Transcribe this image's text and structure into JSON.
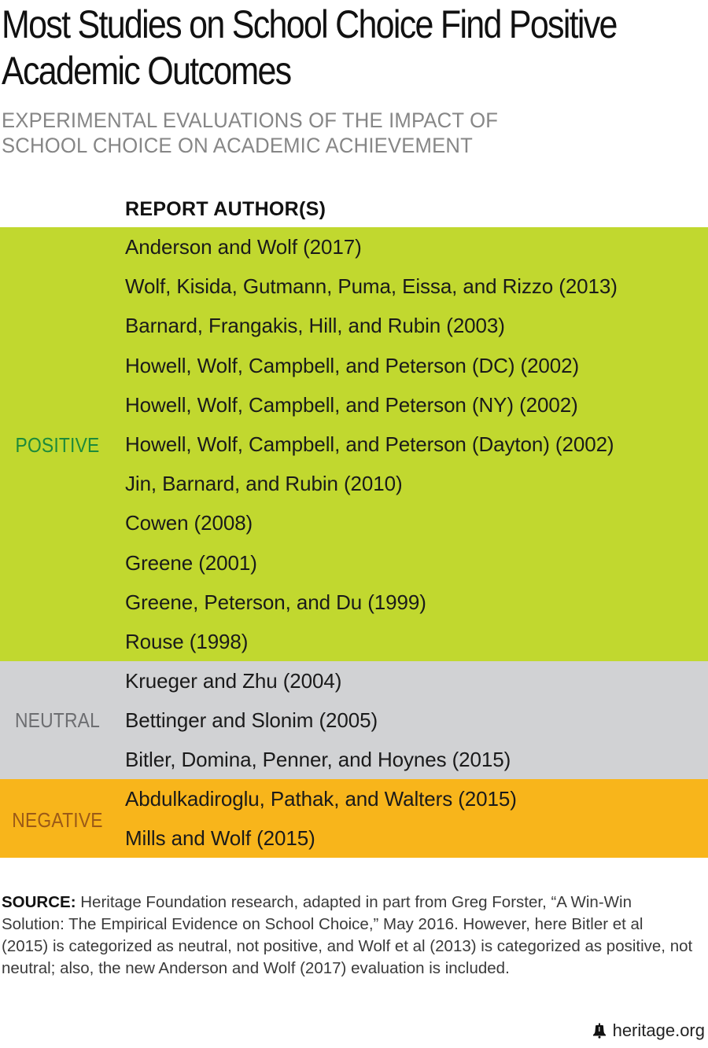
{
  "title_line1": "Most Studies on School Choice Find Positive",
  "title_line2": "Academic Outcomes",
  "subtitle_line1": "EXPERIMENTAL EVALUATIONS OF THE IMPACT OF",
  "subtitle_line2": "SCHOOL CHOICE ON ACADEMIC ACHIEVEMENT",
  "column_header": "REPORT AUTHOR(S)",
  "groups": {
    "positive": {
      "label": "POSITIVE",
      "color": "#c1d82f",
      "reports": [
        "Anderson and Wolf (2017)",
        "Wolf, Kisida, Gutmann, Puma, Eissa, and Rizzo (2013)",
        "Barnard, Frangakis, Hill, and Rubin (2003)",
        "Howell, Wolf, Campbell, and Peterson (DC) (2002)",
        "Howell, Wolf, Campbell, and Peterson (NY) (2002)",
        "Howell, Wolf, Campbell, and Peterson (Dayton) (2002)",
        "Jin, Barnard, and Rubin (2010)",
        "Cowen (2008)",
        "Greene (2001)",
        "Greene, Peterson, and Du (1999)",
        "Rouse (1998)"
      ]
    },
    "neutral": {
      "label": "NEUTRAL",
      "color": "#d1d2d4",
      "reports": [
        "Krueger and Zhu (2004)",
        "Bettinger and Slonim (2005)",
        "Bitler, Domina, Penner, and Hoynes (2015)"
      ]
    },
    "negative": {
      "label": "NEGATIVE",
      "color": "#f8b51b",
      "reports": [
        "Abdulkadiroglu, Pathak, and Walters (2015)",
        "Mills and Wolf (2015)"
      ]
    }
  },
  "source": {
    "label": "SOURCE:",
    "text": " Heritage Foundation research, adapted in part from Greg Forster, “A Win-Win Solution: The Empirical Evidence on School Choice,” May 2016. However, here Bitler et al (2015) is categorized as neutral, not positive, and Wolf et al (2013) is categorized as positive, not neutral; also, the new Anderson and Wolf (2017) evaluation is included."
  },
  "footer": {
    "icon": "liberty-bell-icon",
    "site": "heritage.org"
  }
}
